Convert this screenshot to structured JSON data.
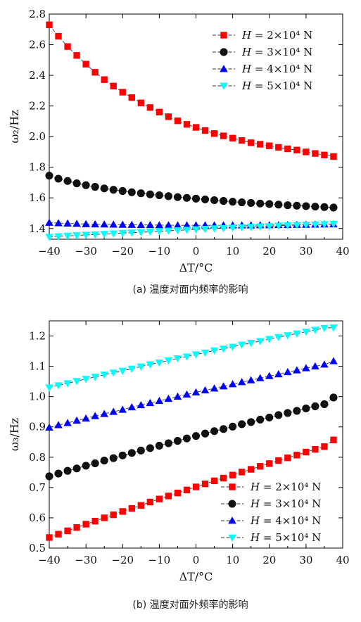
{
  "chart_data": [
    {
      "type": "line",
      "xlabel": "ΔT/°C",
      "ylabel": "ω₂/Hz",
      "caption": "(a) 温度对面内频率的影响",
      "xlim": [
        -40,
        40
      ],
      "ylim": [
        1.33,
        2.8
      ],
      "xticks": [
        -40,
        -30,
        -20,
        -10,
        0,
        10,
        20,
        30,
        40
      ],
      "yticks": [
        1.4,
        1.6,
        1.8,
        2.0,
        2.2,
        2.4,
        2.6,
        2.8
      ],
      "ytick_decimals": 1,
      "legend": "top-right",
      "x": [
        -40,
        -37.5,
        -35,
        -32.5,
        -30,
        -27.5,
        -25,
        -22.5,
        -20,
        -17.5,
        -15,
        -12.5,
        -10,
        -7.5,
        -5,
        -2.5,
        0,
        2.5,
        5,
        7.5,
        10,
        12.5,
        15,
        17.5,
        20,
        22.5,
        25,
        27.5,
        30,
        32.5,
        35,
        37.5
      ],
      "series": [
        {
          "name": "H = 2×10⁴ N",
          "color": "#ff0000",
          "marker": "square",
          "values": [
            2.73,
            2.655,
            2.588,
            2.53,
            2.473,
            2.42,
            2.372,
            2.33,
            2.29,
            2.255,
            2.22,
            2.19,
            2.16,
            2.13,
            2.103,
            2.08,
            2.06,
            2.04,
            2.02,
            2.005,
            1.99,
            1.975,
            1.96,
            1.95,
            1.94,
            1.93,
            1.92,
            1.912,
            1.9,
            1.89,
            1.88,
            1.87
          ]
        },
        {
          "name": "H = 3×10⁴ N",
          "color": "#111111",
          "marker": "circle",
          "values": [
            1.745,
            1.725,
            1.71,
            1.695,
            1.683,
            1.672,
            1.662,
            1.653,
            1.645,
            1.637,
            1.63,
            1.623,
            1.617,
            1.611,
            1.605,
            1.6,
            1.595,
            1.59,
            1.585,
            1.58,
            1.575,
            1.571,
            1.567,
            1.563,
            1.56,
            1.556,
            1.552,
            1.549,
            1.546,
            1.543,
            1.54,
            1.537
          ]
        },
        {
          "name": "H = 4×10⁴ N",
          "color": "#0000ff",
          "marker": "triangle-up",
          "values": [
            1.438,
            1.435,
            1.433,
            1.431,
            1.429,
            1.428,
            1.427,
            1.426,
            1.425,
            1.424,
            1.423,
            1.423,
            1.422,
            1.422,
            1.421,
            1.421,
            1.421,
            1.421,
            1.421,
            1.421,
            1.421,
            1.421,
            1.421,
            1.422,
            1.422,
            1.423,
            1.423,
            1.424,
            1.425,
            1.426,
            1.427,
            1.428
          ]
        },
        {
          "name": "H = 5×10⁴ N",
          "color": "#00ffff",
          "marker": "triangle-down",
          "values": [
            1.345,
            1.349,
            1.352,
            1.355,
            1.358,
            1.361,
            1.364,
            1.367,
            1.37,
            1.373,
            1.376,
            1.379,
            1.382,
            1.385,
            1.388,
            1.391,
            1.394,
            1.397,
            1.4,
            1.402,
            1.405,
            1.408,
            1.41,
            1.413,
            1.415,
            1.418,
            1.42,
            1.422,
            1.424,
            1.426,
            1.428,
            1.43
          ]
        }
      ]
    },
    {
      "type": "line",
      "xlabel": "ΔT/°C",
      "ylabel": "ω₃/Hz",
      "caption": "(b) 温度对面外频率的影响",
      "xlim": [
        -40,
        40
      ],
      "ylim": [
        0.5,
        1.25
      ],
      "xticks": [
        -40,
        -30,
        -20,
        -10,
        0,
        10,
        20,
        30,
        40
      ],
      "yticks": [
        0.5,
        0.6,
        0.7,
        0.8,
        0.9,
        1.0,
        1.1,
        1.2
      ],
      "ytick_decimals": 1,
      "legend": "bottom-right",
      "x": [
        -40,
        -37.5,
        -35,
        -32.5,
        -30,
        -27.5,
        -25,
        -22.5,
        -20,
        -17.5,
        -15,
        -12.5,
        -10,
        -7.5,
        -5,
        -2.5,
        0,
        2.5,
        5,
        7.5,
        10,
        12.5,
        15,
        17.5,
        20,
        22.5,
        25,
        27.5,
        30,
        32.5,
        35,
        37.5
      ],
      "series": [
        {
          "name": "H = 2×10⁴ N",
          "color": "#ff0000",
          "marker": "square",
          "values": [
            0.535,
            0.546,
            0.557,
            0.568,
            0.579,
            0.589,
            0.6,
            0.61,
            0.621,
            0.631,
            0.641,
            0.652,
            0.662,
            0.672,
            0.682,
            0.692,
            0.702,
            0.712,
            0.722,
            0.731,
            0.741,
            0.751,
            0.76,
            0.77,
            0.779,
            0.789,
            0.798,
            0.807,
            0.817,
            0.826,
            0.835,
            0.857
          ]
        },
        {
          "name": "H = 3×10⁴ N",
          "color": "#111111",
          "marker": "circle",
          "values": [
            0.737,
            0.746,
            0.755,
            0.763,
            0.772,
            0.78,
            0.789,
            0.797,
            0.806,
            0.814,
            0.822,
            0.83,
            0.838,
            0.846,
            0.854,
            0.862,
            0.87,
            0.878,
            0.886,
            0.893,
            0.901,
            0.909,
            0.916,
            0.924,
            0.931,
            0.939,
            0.946,
            0.953,
            0.961,
            0.968,
            0.975,
            0.997
          ]
        },
        {
          "name": "H = 4×10⁴ N",
          "color": "#0000ff",
          "marker": "triangle-up",
          "values": [
            0.898,
            0.906,
            0.913,
            0.921,
            0.928,
            0.936,
            0.943,
            0.95,
            0.957,
            0.965,
            0.972,
            0.979,
            0.986,
            0.993,
            1.0,
            1.007,
            1.014,
            1.021,
            1.027,
            1.034,
            1.041,
            1.048,
            1.054,
            1.061,
            1.068,
            1.074,
            1.081,
            1.087,
            1.094,
            1.1,
            1.106,
            1.117
          ]
        },
        {
          "name": "H = 5×10⁴ N",
          "color": "#00ffff",
          "marker": "triangle-down",
          "values": [
            1.03,
            1.037,
            1.044,
            1.051,
            1.058,
            1.065,
            1.072,
            1.079,
            1.085,
            1.092,
            1.099,
            1.106,
            1.112,
            1.119,
            1.126,
            1.132,
            1.139,
            1.145,
            1.152,
            1.158,
            1.164,
            1.171,
            1.177,
            1.183,
            1.19,
            1.196,
            1.202,
            1.208,
            1.214,
            1.22,
            1.226,
            1.228
          ]
        }
      ]
    }
  ]
}
